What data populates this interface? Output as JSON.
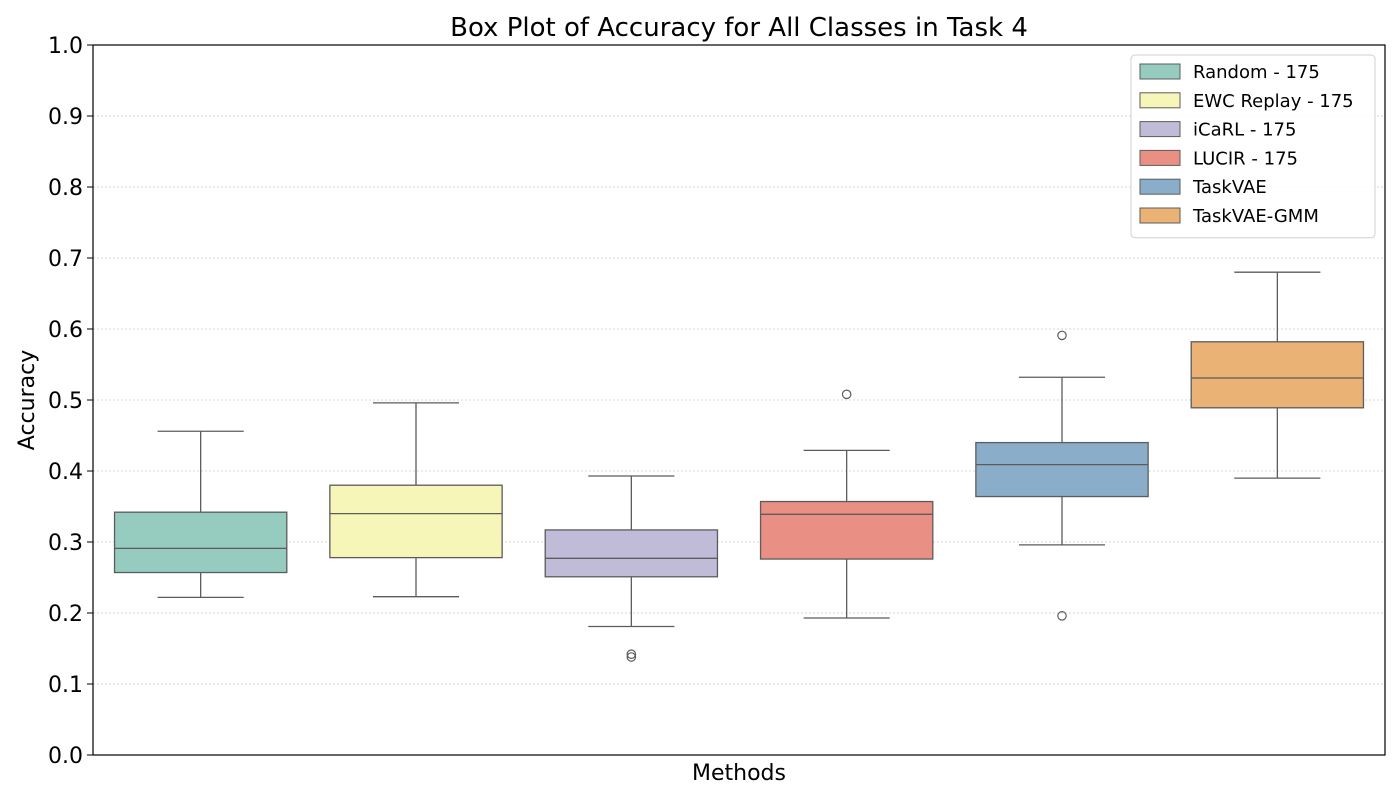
{
  "chart_data": {
    "type": "box",
    "title": "Box Plot of Accuracy for All Classes in Task 4",
    "xlabel": "Methods",
    "ylabel": "Accuracy",
    "ylim": [
      0.0,
      1.0
    ],
    "yticks": [
      "0.0",
      "0.1",
      "0.2",
      "0.3",
      "0.4",
      "0.5",
      "0.6",
      "0.7",
      "0.8",
      "0.9",
      "1.0"
    ],
    "grid": "horizontal-dotted",
    "legend_position": "top-right",
    "series": [
      {
        "name": "Random - 175",
        "color": "#96cbbf",
        "whisker_low": 0.222,
        "q1": 0.257,
        "median": 0.291,
        "q3": 0.342,
        "whisker_high": 0.456,
        "outliers": []
      },
      {
        "name": "EWC Replay - 175",
        "color": "#f6f6b9",
        "whisker_low": 0.223,
        "q1": 0.278,
        "median": 0.34,
        "q3": 0.38,
        "whisker_high": 0.496,
        "outliers": []
      },
      {
        "name": "iCaRL - 175",
        "color": "#c0bcd8",
        "whisker_low": 0.181,
        "q1": 0.251,
        "median": 0.277,
        "q3": 0.317,
        "whisker_high": 0.393,
        "outliers": [
          0.138,
          0.142
        ]
      },
      {
        "name": "LUCIR - 175",
        "color": "#ea8f84",
        "whisker_low": 0.193,
        "q1": 0.276,
        "median": 0.339,
        "q3": 0.357,
        "whisker_high": 0.429,
        "outliers": [
          0.508
        ]
      },
      {
        "name": "TaskVAE",
        "color": "#8aaeca",
        "whisker_low": 0.296,
        "q1": 0.364,
        "median": 0.409,
        "q3": 0.44,
        "whisker_high": 0.532,
        "outliers": [
          0.196,
          0.591
        ]
      },
      {
        "name": "TaskVAE-GMM",
        "color": "#eab275",
        "whisker_low": 0.39,
        "q1": 0.489,
        "median": 0.531,
        "q3": 0.582,
        "whisker_high": 0.68,
        "outliers": []
      }
    ]
  }
}
